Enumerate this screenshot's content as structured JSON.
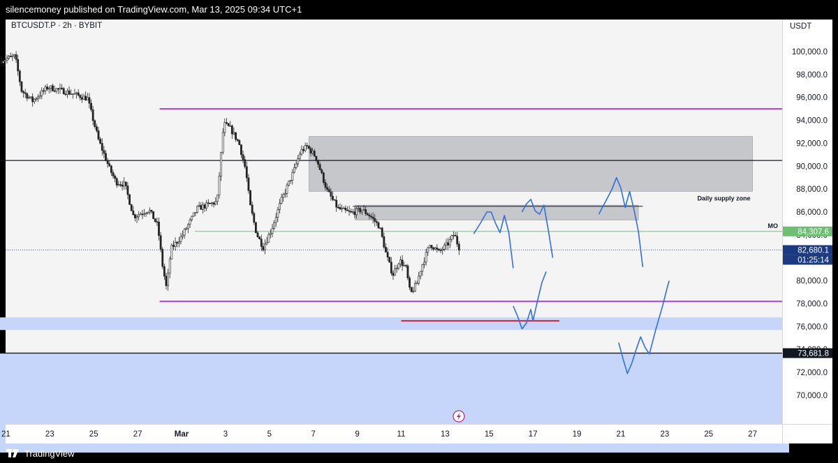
{
  "header": {
    "publish_text": "silencemoney published on TradingView.com, Mar 13, 2025 09:34 UTC+1"
  },
  "footer": {
    "brand": "TradingView"
  },
  "symbol_label": "BTCUSDT.P · 2h · BYBIT",
  "currency": "USDT",
  "annotations": {
    "supply_zone": "Daily supply zone",
    "mo": "MO"
  },
  "colors": {
    "purple_level": "#b03cd8",
    "black_level": "#131722",
    "green_level": "#6fbf73",
    "red_level": "#e0202a",
    "projection": "#2f6fe0",
    "supply_zone": "#c6c7cb",
    "demand_zone": "#c5d6fa",
    "flash_icon": "#b22a91"
  },
  "chart_data": {
    "type": "candlestick",
    "symbol": "BTCUSDT.P",
    "interval": "2h",
    "exchange": "BYBIT",
    "y_axis": {
      "currency": "USDT",
      "ylim": [
        67500,
        102800
      ],
      "ticks": [
        "100,000.0",
        "98,000.0",
        "96,000.0",
        "94,000.0",
        "92,000.0",
        "90,000.0",
        "88,000.0",
        "86,000.0",
        "84,000.0",
        "82,000.0",
        "80,000.0",
        "78,000.0",
        "76,000.0",
        "74,000.0",
        "72,000.0",
        "70,000.0"
      ],
      "tick_values": [
        100000,
        98000,
        96000,
        94000,
        92000,
        90000,
        88000,
        86000,
        84000,
        82000,
        80000,
        78000,
        76000,
        74000,
        72000,
        70000
      ]
    },
    "x_axis": {
      "ticks": [
        "21",
        "23",
        "25",
        "27",
        "Mar",
        "3",
        "5",
        "7",
        "9",
        "11",
        "13",
        "15",
        "17",
        "19",
        "21",
        "23",
        "25",
        "27"
      ],
      "tick_days": [
        -8,
        -6,
        -4,
        -2,
        0,
        2,
        4,
        6,
        8,
        10,
        12,
        14,
        16,
        18,
        20,
        22,
        24,
        26
      ]
    },
    "price_labels": [
      {
        "text": "84,307.6",
        "value": 84307.6,
        "type": "MO"
      },
      {
        "text": "82,680.1",
        "value": 82680.1,
        "type": "last"
      },
      {
        "text": "01:25:14",
        "type": "countdown"
      },
      {
        "text": "73,681.8",
        "value": 73681.8,
        "type": "level"
      }
    ],
    "price_path": [
      [
        -8.2,
        99200
      ],
      [
        -7.5,
        99600
      ],
      [
        -7.2,
        96600
      ],
      [
        -6.7,
        95700
      ],
      [
        -6.0,
        96900
      ],
      [
        -5.0,
        96400
      ],
      [
        -4.2,
        95900
      ],
      [
        -3.7,
        92300
      ],
      [
        -3.2,
        89800
      ],
      [
        -2.9,
        88600
      ],
      [
        -2.5,
        88400
      ],
      [
        -2.1,
        85600
      ],
      [
        -1.4,
        86200
      ],
      [
        -1.0,
        84800
      ],
      [
        -0.8,
        81500
      ],
      [
        -0.6,
        79300
      ],
      [
        -0.4,
        82800
      ],
      [
        0.1,
        83900
      ],
      [
        0.8,
        86300
      ],
      [
        1.7,
        86900
      ],
      [
        2.0,
        93700
      ],
      [
        2.3,
        93300
      ],
      [
        2.7,
        92000
      ],
      [
        3.0,
        89700
      ],
      [
        3.2,
        86600
      ],
      [
        3.5,
        84100
      ],
      [
        3.8,
        82900
      ],
      [
        4.2,
        84600
      ],
      [
        4.6,
        86900
      ],
      [
        5.2,
        89600
      ],
      [
        5.5,
        91300
      ],
      [
        5.8,
        91700
      ],
      [
        6.2,
        90800
      ],
      [
        6.7,
        87900
      ],
      [
        7.2,
        86300
      ],
      [
        7.8,
        85900
      ],
      [
        8.3,
        86200
      ],
      [
        8.7,
        85600
      ],
      [
        9.1,
        84700
      ],
      [
        9.4,
        82300
      ],
      [
        9.7,
        80500
      ],
      [
        10.0,
        81800
      ],
      [
        10.3,
        81100
      ],
      [
        10.5,
        78800
      ],
      [
        10.8,
        79800
      ],
      [
        11.0,
        81200
      ],
      [
        11.4,
        83200
      ],
      [
        11.8,
        82500
      ],
      [
        12.2,
        83200
      ],
      [
        12.5,
        84100
      ],
      [
        12.7,
        82900
      ]
    ],
    "horizontal_levels": [
      {
        "value": 95000,
        "from_day": -1.0,
        "to_day": 33,
        "role": "purple"
      },
      {
        "value": 90500,
        "from_day": -12,
        "to_day": 33,
        "role": "black"
      },
      {
        "value": 84307.6,
        "from_day": 0.6,
        "to_day": 33,
        "role": "green",
        "label": "MO"
      },
      {
        "value": 78200,
        "from_day": -1.0,
        "to_day": 33,
        "role": "purple"
      },
      {
        "value": 76500,
        "from_day": 10.0,
        "to_day": 17.2,
        "role": "red"
      },
      {
        "value": 86500,
        "from_day": 7.8,
        "to_day": 21.0,
        "role": "black-thin"
      },
      {
        "value": 73681.8,
        "from_day": -12,
        "to_day": 33,
        "role": "black"
      }
    ],
    "zones": [
      {
        "type": "supply",
        "name": "Daily supply zone",
        "from_day": 5.8,
        "to_day": 26.0,
        "top": 92600,
        "bottom": 87800
      },
      {
        "type": "supply",
        "from_day": 7.9,
        "to_day": 20.8,
        "top": 86600,
        "bottom": 85300
      },
      {
        "type": "demand",
        "from_day": -12,
        "to_day": 33,
        "top": 76800,
        "bottom": 75700
      },
      {
        "type": "demand",
        "from_day": -12,
        "to_day": 33,
        "top": 73681.8,
        "bottom": 65000
      }
    ],
    "projections": [
      [
        [
          13.3,
          84100
        ],
        [
          13.6,
          85000
        ],
        [
          13.9,
          86000
        ],
        [
          14.1,
          86000
        ],
        [
          14.3,
          85000
        ],
        [
          14.5,
          84200
        ],
        [
          14.7,
          85700
        ],
        [
          14.9,
          84200
        ],
        [
          15.1,
          81100
        ]
      ],
      [
        [
          15.5,
          86000
        ],
        [
          15.7,
          86700
        ],
        [
          15.9,
          87100
        ],
        [
          16.1,
          86100
        ],
        [
          16.3,
          85800
        ],
        [
          16.5,
          86600
        ],
        [
          16.7,
          84400
        ],
        [
          16.9,
          82000
        ]
      ],
      [
        [
          15.1,
          77800
        ],
        [
          15.3,
          76900
        ],
        [
          15.5,
          75800
        ],
        [
          15.7,
          76300
        ],
        [
          15.9,
          77500
        ],
        [
          16.0,
          76500
        ],
        [
          16.2,
          78200
        ],
        [
          16.4,
          79800
        ],
        [
          16.6,
          80800
        ]
      ],
      [
        [
          19.0,
          85800
        ],
        [
          19.3,
          86900
        ],
        [
          19.6,
          88000
        ],
        [
          19.8,
          89000
        ],
        [
          20.0,
          88100
        ],
        [
          20.2,
          86400
        ],
        [
          20.4,
          87800
        ],
        [
          20.6,
          86200
        ],
        [
          20.8,
          84300
        ],
        [
          21.0,
          81200
        ]
      ],
      [
        [
          19.9,
          74600
        ],
        [
          20.1,
          73200
        ],
        [
          20.3,
          71900
        ],
        [
          20.5,
          72800
        ],
        [
          20.7,
          74000
        ],
        [
          20.9,
          75100
        ],
        [
          21.1,
          74200
        ],
        [
          21.3,
          73600
        ],
        [
          21.6,
          75800
        ],
        [
          21.9,
          77800
        ],
        [
          22.1,
          79300
        ],
        [
          22.2,
          80000
        ]
      ]
    ]
  }
}
